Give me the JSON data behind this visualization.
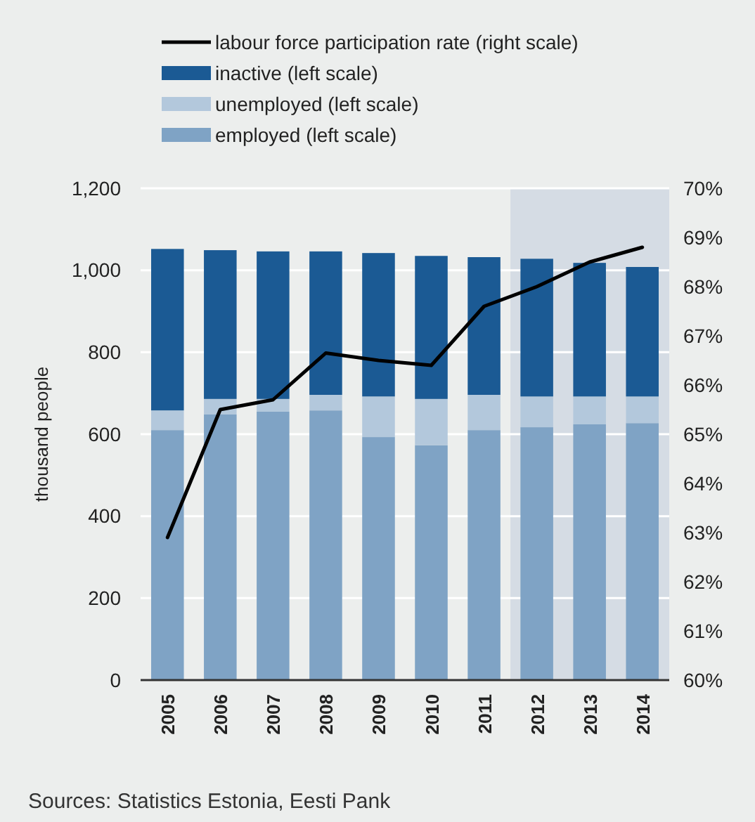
{
  "chart_data": {
    "type": "bar",
    "stacked": true,
    "categories": [
      "2005",
      "2006",
      "2007",
      "2008",
      "2009",
      "2010",
      "2011",
      "2012",
      "2013",
      "2014"
    ],
    "ylabel": "thousand people",
    "ylim": [
      0,
      1200
    ],
    "yticks": [
      0,
      {
        "value": 200,
        "label": "200"
      },
      {
        "value": 400,
        "label": "400"
      },
      {
        "value": 600,
        "label": "600"
      },
      {
        "value": 800,
        "label": "800"
      },
      {
        "value": 1000,
        "label": "1,000"
      },
      {
        "value": 1200,
        "label": "1,200"
      }
    ],
    "y2lim": [
      60,
      70
    ],
    "y2ticks": [
      {
        "value": 60,
        "label": "60%"
      },
      {
        "value": 61,
        "label": "61%"
      },
      {
        "value": 62,
        "label": "62%"
      },
      {
        "value": 63,
        "label": "63%"
      },
      {
        "value": 64,
        "label": "64%"
      },
      {
        "value": 65,
        "label": "65%"
      },
      {
        "value": 66,
        "label": "66%"
      },
      {
        "value": 67,
        "label": "67%"
      },
      {
        "value": 68,
        "label": "68%"
      },
      {
        "value": 69,
        "label": "69%"
      },
      {
        "value": 70,
        "label": "70%"
      }
    ],
    "series": [
      {
        "name": "employed (left scale)",
        "color": "#7fa3c5",
        "values": [
          610,
          648,
          655,
          658,
          593,
          573,
          610,
          617,
          624,
          627
        ]
      },
      {
        "name": "unemployed (left scale)",
        "color": "#b3c8dc",
        "values": [
          48,
          38,
          31,
          38,
          99,
          113,
          86,
          75,
          68,
          65
        ]
      },
      {
        "name": "inactive (left scale)",
        "color": "#1b5a94",
        "values": [
          394,
          363,
          360,
          350,
          350,
          349,
          336,
          336,
          326,
          316
        ]
      },
      {
        "name": "labour force participation rate (right scale)",
        "type": "line",
        "axis": "y2",
        "color": "#000000",
        "values": [
          62.9,
          65.5,
          65.7,
          66.65,
          66.5,
          66.4,
          67.6,
          68.0,
          68.5,
          68.8
        ]
      }
    ],
    "bands": [
      {
        "axis": "x",
        "from": "2012",
        "to": "2014",
        "color": "#d5dce4"
      }
    ],
    "grid": "y",
    "legend": "top",
    "annotations": [
      "Sources: Statistics Estonia, Eesti Pank"
    ]
  }
}
